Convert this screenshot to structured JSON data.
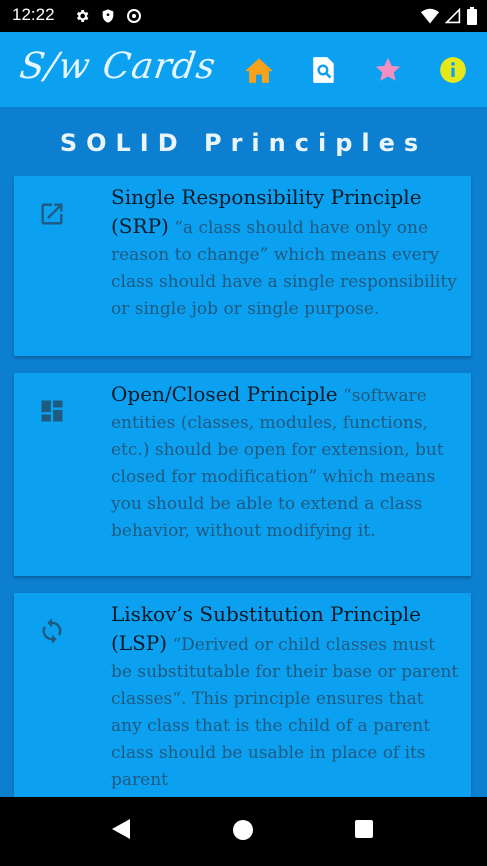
{
  "status_bar": {
    "time": "12:22"
  },
  "app_bar": {
    "title": "S/w Cards",
    "actions": [
      {
        "name": "home",
        "icon": "home-icon",
        "color": "#f7a21b"
      },
      {
        "name": "search",
        "icon": "page-search-icon",
        "color": "#ffffff"
      },
      {
        "name": "favorites",
        "icon": "star-icon",
        "color": "#f48fc4"
      },
      {
        "name": "info",
        "icon": "info-icon",
        "color": "#e6e81a"
      }
    ]
  },
  "page": {
    "heading": "SOLID Principles",
    "cards": [
      {
        "icon": "open-in-new-icon",
        "title": "Single Responsibility Principle (SRP)",
        "body": "“a class should have only one reason to change” which means every class should have a single responsibility or single job or single purpose."
      },
      {
        "icon": "dashboard-icon",
        "title": "Open/Closed Principle",
        "body": "“software entities (classes, modules, functions, etc.) should be open for extension, but closed for modification” which means you should be able to extend a class behavior, without modifying it."
      },
      {
        "icon": "sync-icon",
        "title": "Liskov’s Substitution Principle (LSP)",
        "body": "“Derived or child classes must be substitutable for their base or parent classes“. This principle ensures that any class that is the child of a parent class should be usable in place of its parent"
      }
    ]
  },
  "colors": {
    "app_bar": "#0ca0f0",
    "background": "#0d7fd0",
    "card": "#0ca0f0",
    "card_title": "#0a1a28",
    "card_body": "#1f5a80"
  }
}
